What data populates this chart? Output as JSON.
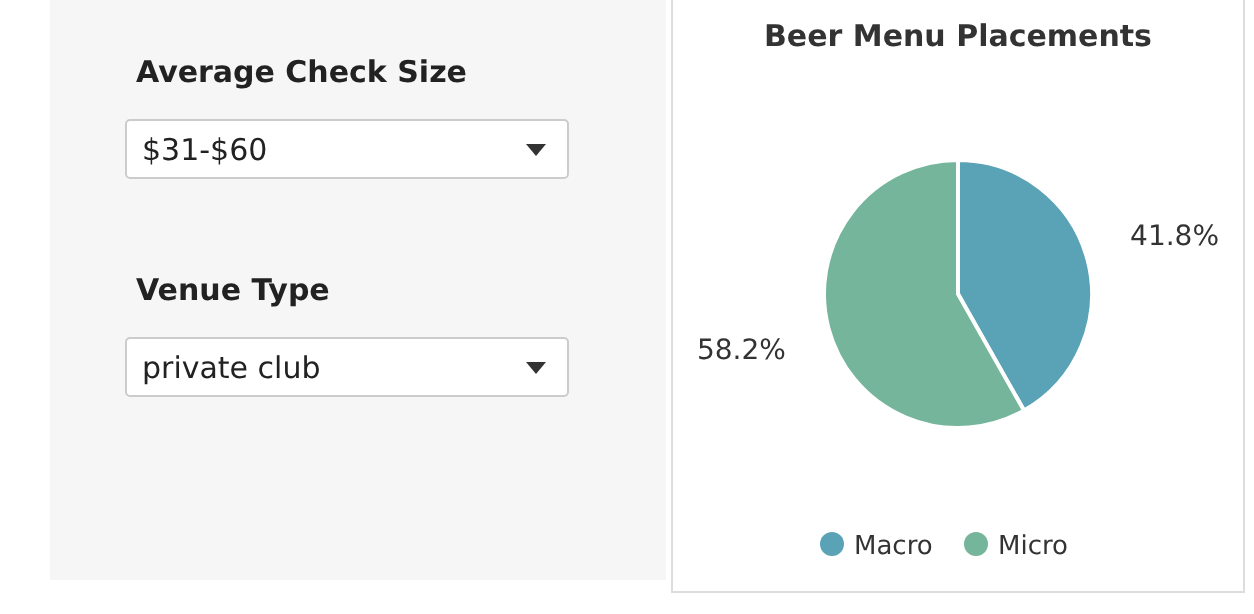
{
  "chart_data": [
    {
      "type": "other",
      "annotations": [
        "Average Check Size",
        "$31-$60",
        "Venue Type",
        "private club"
      ]
    },
    {
      "type": "pie",
      "title": "Beer Menu Placements",
      "categories": [
        "Macro",
        "Micro"
      ],
      "values": [
        41.8,
        58.2
      ],
      "colors": [
        "#5aa2b6",
        "#74b59b"
      ],
      "value_labels": [
        "41.8%",
        "58.2%"
      ],
      "legend": "bottom"
    }
  ]
}
